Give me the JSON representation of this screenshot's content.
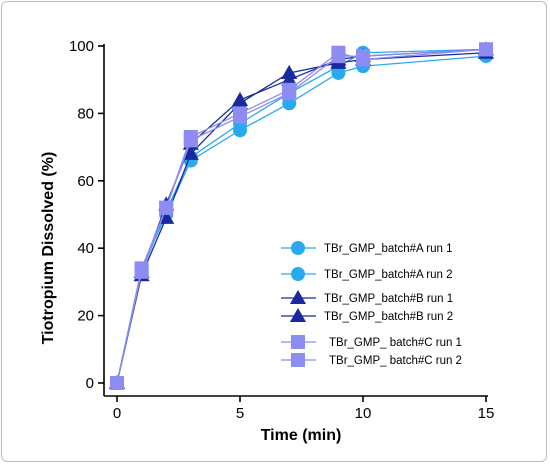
{
  "chart_data": {
    "type": "line",
    "title": "",
    "xlabel": "Time (min)",
    "ylabel": "Tiotropium Dissolved  (%)",
    "xlim": [
      0,
      15
    ],
    "ylim": [
      0,
      100
    ],
    "xticks": [
      0,
      5,
      10,
      15
    ],
    "yticks": [
      0,
      20,
      40,
      60,
      80,
      100
    ],
    "grid": false,
    "legend_position": "bottom-right inside plot",
    "series": [
      {
        "name": "TBr_GMP_batch#A run 1",
        "marker": "circle",
        "color": "#29a9ef",
        "marker_size": 7,
        "x": [
          0,
          1,
          2,
          3,
          5,
          7,
          9,
          10,
          15
        ],
        "y": [
          0,
          34,
          50,
          66,
          75,
          83,
          92,
          94,
          97
        ]
      },
      {
        "name": "TBr_GMP_batch#A run 2",
        "marker": "circle",
        "color": "#29a9ef",
        "marker_size": 7,
        "x": [
          0,
          1,
          2,
          3,
          5,
          7,
          9,
          10,
          15
        ],
        "y": [
          0,
          33,
          51,
          67,
          77,
          86,
          94,
          98,
          99
        ]
      },
      {
        "name": "TBr_GMP_batch#B run 1",
        "marker": "triangle",
        "color": "#1a2a9c",
        "marker_size": 7,
        "x": [
          0,
          1,
          2,
          3,
          5,
          7,
          9,
          10,
          15
        ],
        "y": [
          0,
          32,
          49,
          68,
          83,
          92,
          95,
          96,
          98
        ]
      },
      {
        "name": "TBr_GMP_batch#B run 2",
        "marker": "triangle",
        "color": "#1a2a9c",
        "marker_size": 7,
        "x": [
          0,
          1,
          2,
          3,
          5,
          7,
          9,
          10,
          15
        ],
        "y": [
          0,
          33,
          53,
          71,
          84,
          90,
          96,
          97,
          99
        ]
      },
      {
        "name": "TBr_GMP_ batch#C run 1",
        "marker": "square",
        "color": "#8c8cf2",
        "marker_size": 7,
        "x": [
          0,
          1,
          2,
          3,
          5,
          7,
          9,
          10,
          15
        ],
        "y": [
          0,
          34,
          52,
          73,
          80,
          87,
          98,
          96,
          99
        ]
      },
      {
        "name": "TBr_GMP_ batch#C run 2",
        "marker": "square",
        "color": "#8c8cf2",
        "marker_size": 7,
        "x": [
          0,
          1,
          2,
          3,
          5,
          7,
          9,
          10,
          15
        ],
        "y": [
          0,
          33,
          52,
          72,
          79,
          86,
          97,
          97,
          99
        ]
      }
    ]
  }
}
